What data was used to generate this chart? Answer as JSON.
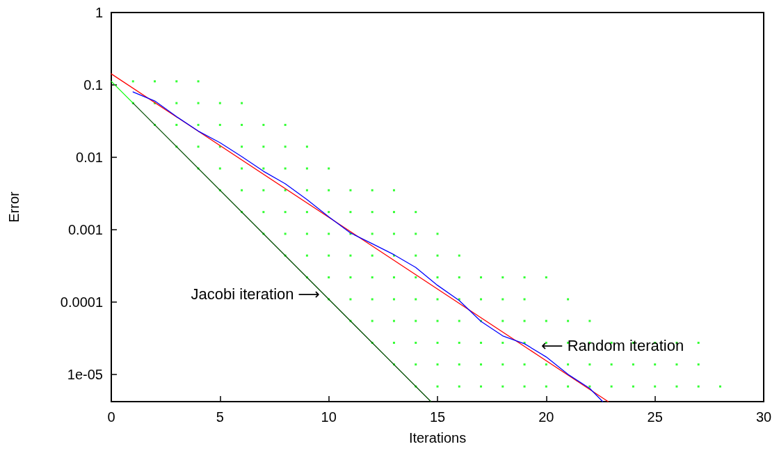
{
  "chart_data": {
    "type": "line",
    "xlabel": "Iterations",
    "ylabel": "Error",
    "log": "y",
    "xlim": [
      0,
      30
    ],
    "xticks": [
      0,
      5,
      10,
      15,
      20,
      25,
      30
    ],
    "ylim": [
      4.2e-06,
      1
    ],
    "yticks": [
      1,
      0.1,
      0.01,
      0.001,
      0.0001,
      {
        "value": 1e-05,
        "label": "1e-05"
      }
    ],
    "grid": false,
    "annotations": [
      {
        "text": "Jacobi iteration ⟶",
        "x": 9.6,
        "y": 0.00013
      },
      "⟵ Random iteration"
    ],
    "series": [
      {
        "type": "scatter",
        "marker": "square",
        "color": "#00ff00",
        "x": [
          1,
          2,
          3,
          4,
          1,
          2,
          3,
          4,
          5,
          6,
          2,
          3,
          4,
          5,
          6,
          7,
          8,
          3,
          4,
          5,
          6,
          7,
          8,
          9,
          4,
          5,
          6,
          7,
          8,
          9,
          10,
          5,
          6,
          7,
          8,
          9,
          10,
          11,
          12,
          13,
          6,
          7,
          8,
          9,
          10,
          11,
          12,
          13,
          14,
          7,
          8,
          9,
          10,
          11,
          12,
          13,
          14,
          15,
          8,
          9,
          10,
          11,
          12,
          13,
          14,
          15,
          16,
          9,
          10,
          11,
          12,
          13,
          14,
          15,
          16,
          17,
          18,
          19,
          20,
          10,
          11,
          12,
          13,
          14,
          15,
          16,
          17,
          18,
          19,
          21,
          11,
          12,
          13,
          14,
          15,
          16,
          17,
          18,
          19,
          20,
          21,
          22,
          12,
          13,
          14,
          15,
          16,
          17,
          18,
          19,
          20,
          21,
          22,
          23,
          24,
          25,
          26,
          27,
          13,
          14,
          15,
          16,
          17,
          18,
          19,
          20,
          21,
          22,
          23,
          24,
          25,
          26,
          27,
          14,
          15,
          16,
          17,
          18,
          19,
          20,
          21,
          22,
          23,
          24,
          25,
          26,
          27,
          28
        ],
        "values": [
          0.112,
          0.112,
          0.112,
          0.112,
          0.056,
          0.056,
          0.056,
          0.056,
          0.056,
          0.056,
          0.028,
          0.028,
          0.028,
          0.028,
          0.028,
          0.028,
          0.028,
          0.014,
          0.014,
          0.014,
          0.014,
          0.014,
          0.014,
          0.014,
          0.007,
          0.007,
          0.007,
          0.007,
          0.007,
          0.007,
          0.007,
          0.0035,
          0.0035,
          0.0035,
          0.0035,
          0.0035,
          0.0035,
          0.0035,
          0.0035,
          0.0035,
          0.00175,
          0.00175,
          0.00175,
          0.00175,
          0.00175,
          0.00175,
          0.00175,
          0.00175,
          0.00175,
          0.000875,
          0.000875,
          0.000875,
          0.000875,
          0.000875,
          0.000875,
          0.000875,
          0.000875,
          0.000875,
          0.000438,
          0.000438,
          0.000438,
          0.000438,
          0.000438,
          0.000438,
          0.000438,
          0.000438,
          0.000438,
          0.000219,
          0.000219,
          0.000219,
          0.000219,
          0.000219,
          0.000219,
          0.000219,
          0.000219,
          0.000219,
          0.000219,
          0.000219,
          0.000219,
          0.000109,
          0.000109,
          0.000109,
          0.000109,
          0.000109,
          0.000109,
          0.000109,
          0.000109,
          0.000109,
          0.000109,
          0.000109,
          5.47e-05,
          5.47e-05,
          5.47e-05,
          5.47e-05,
          5.47e-05,
          5.47e-05,
          5.47e-05,
          5.47e-05,
          5.47e-05,
          5.47e-05,
          5.47e-05,
          5.47e-05,
          2.73e-05,
          2.73e-05,
          2.73e-05,
          2.73e-05,
          2.73e-05,
          2.73e-05,
          2.73e-05,
          2.73e-05,
          2.73e-05,
          2.73e-05,
          2.73e-05,
          2.73e-05,
          2.73e-05,
          2.73e-05,
          2.73e-05,
          2.73e-05,
          1.37e-05,
          1.37e-05,
          1.37e-05,
          1.37e-05,
          1.37e-05,
          1.37e-05,
          1.37e-05,
          1.37e-05,
          1.37e-05,
          1.37e-05,
          1.37e-05,
          1.37e-05,
          1.37e-05,
          1.37e-05,
          1.37e-05,
          6.8e-06,
          6.8e-06,
          6.8e-06,
          6.8e-06,
          6.8e-06,
          6.8e-06,
          6.8e-06,
          6.8e-06,
          6.8e-06,
          6.8e-06,
          6.8e-06,
          6.8e-06,
          6.8e-06,
          6.8e-06,
          6.8e-06
        ]
      },
      {
        "marker": "none",
        "color": "#00ff00",
        "x": [
          0,
          1
        ],
        "values": [
          0.112,
          0.056
        ]
      },
      {
        "marker": "none",
        "color": "#004d00",
        "x": [
          1,
          14.7
        ],
        "values": [
          0.056,
          4.2e-06
        ]
      },
      {
        "marker": "none",
        "color": "#ff0000",
        "x": [
          0,
          22.85
        ],
        "values": [
          0.142,
          4.2e-06
        ]
      },
      {
        "marker": "none",
        "color": "#0000ff",
        "x": [
          1,
          2,
          3,
          4,
          5,
          6,
          7,
          8,
          9,
          10,
          11,
          12,
          13,
          14,
          15,
          16,
          17,
          18,
          19,
          20,
          21,
          22,
          22.6
        ],
        "values": [
          0.08,
          0.06,
          0.0364,
          0.023,
          0.0159,
          0.0102,
          0.0064,
          0.0043,
          0.0026,
          0.0015,
          0.0009,
          0.00064,
          0.00045,
          0.0003,
          0.00017,
          0.000105,
          5.4e-05,
          3.4e-05,
          2.65e-05,
          1.74e-05,
          1e-05,
          6.4e-06,
          4.2e-06
        ]
      }
    ]
  }
}
